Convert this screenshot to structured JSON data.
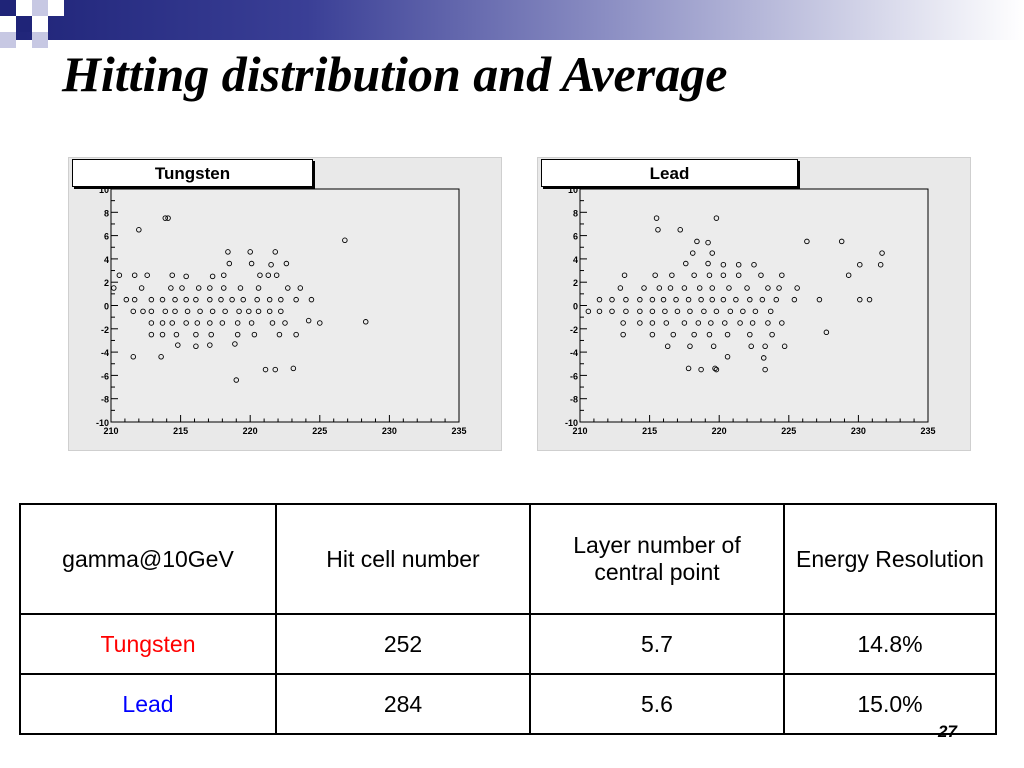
{
  "slide": {
    "title": "Hitting distribution and Average",
    "page_number": "27"
  },
  "colors": {
    "title_bar_dark": "#1f2478",
    "tungsten_label": "#ff0000",
    "lead_label": "#0000ff"
  },
  "chart_data": [
    {
      "type": "scatter",
      "title": "Tungsten",
      "xlabel": "",
      "ylabel": "",
      "xlim": [
        210,
        235
      ],
      "ylim": [
        -10,
        10
      ],
      "x_ticks": [
        "210",
        "215",
        "220",
        "225",
        "230",
        "235"
      ],
      "y_ticks": [
        "10",
        "8",
        "6",
        "4",
        "2",
        "0",
        "-2",
        "-4",
        "-6",
        "-8",
        "-10"
      ],
      "grid": false,
      "marker": "open-circle",
      "points": [
        [
          212,
          6.5
        ],
        [
          213.9,
          7.5
        ],
        [
          214.1,
          7.5
        ],
        [
          226.8,
          5.6
        ],
        [
          218.4,
          4.6
        ],
        [
          220,
          4.6
        ],
        [
          221.8,
          4.6
        ],
        [
          228.3,
          -1.4
        ],
        [
          218.5,
          3.6
        ],
        [
          220.1,
          3.6
        ],
        [
          221.5,
          3.5
        ],
        [
          222.6,
          3.6
        ],
        [
          210.6,
          2.6
        ],
        [
          211.7,
          2.6
        ],
        [
          212.6,
          2.6
        ],
        [
          214.4,
          2.6
        ],
        [
          215.4,
          2.5
        ],
        [
          217.3,
          2.5
        ],
        [
          218.1,
          2.6
        ],
        [
          220.7,
          2.6
        ],
        [
          221.3,
          2.6
        ],
        [
          221.9,
          2.6
        ],
        [
          210.2,
          1.5
        ],
        [
          212.2,
          1.5
        ],
        [
          214.3,
          1.5
        ],
        [
          215.1,
          1.5
        ],
        [
          216.3,
          1.5
        ],
        [
          217.1,
          1.5
        ],
        [
          218.1,
          1.5
        ],
        [
          219.3,
          1.5
        ],
        [
          220.6,
          1.5
        ],
        [
          222.7,
          1.5
        ],
        [
          223.6,
          1.5
        ],
        [
          211.1,
          0.5
        ],
        [
          211.7,
          0.5
        ],
        [
          212.9,
          0.5
        ],
        [
          213.7,
          0.5
        ],
        [
          214.6,
          0.5
        ],
        [
          215.4,
          0.5
        ],
        [
          216.1,
          0.5
        ],
        [
          217.1,
          0.5
        ],
        [
          217.9,
          0.5
        ],
        [
          218.7,
          0.5
        ],
        [
          219.5,
          0.5
        ],
        [
          220.5,
          0.5
        ],
        [
          221.4,
          0.5
        ],
        [
          222.2,
          0.5
        ],
        [
          223.3,
          0.5
        ],
        [
          224.4,
          0.5
        ],
        [
          211.6,
          -0.5
        ],
        [
          212.3,
          -0.5
        ],
        [
          212.9,
          -0.5
        ],
        [
          213.9,
          -0.5
        ],
        [
          214.6,
          -0.5
        ],
        [
          215.5,
          -0.5
        ],
        [
          216.4,
          -0.5
        ],
        [
          217.3,
          -0.5
        ],
        [
          218.2,
          -0.5
        ],
        [
          219.2,
          -0.5
        ],
        [
          219.9,
          -0.5
        ],
        [
          220.6,
          -0.5
        ],
        [
          221.4,
          -0.5
        ],
        [
          222.2,
          -0.5
        ],
        [
          212.9,
          -1.5
        ],
        [
          213.7,
          -1.5
        ],
        [
          214.4,
          -1.5
        ],
        [
          215.4,
          -1.5
        ],
        [
          216.2,
          -1.5
        ],
        [
          217.1,
          -1.5
        ],
        [
          218,
          -1.5
        ],
        [
          219.1,
          -1.5
        ],
        [
          220.1,
          -1.5
        ],
        [
          221.6,
          -1.5
        ],
        [
          222.5,
          -1.5
        ],
        [
          224.2,
          -1.3
        ],
        [
          225,
          -1.5
        ],
        [
          212.9,
          -2.5
        ],
        [
          213.7,
          -2.5
        ],
        [
          214.7,
          -2.5
        ],
        [
          216.1,
          -2.5
        ],
        [
          217.2,
          -2.5
        ],
        [
          219.1,
          -2.5
        ],
        [
          220.3,
          -2.5
        ],
        [
          222.1,
          -2.5
        ],
        [
          223.3,
          -2.5
        ],
        [
          211.6,
          -4.4
        ],
        [
          213.6,
          -4.4
        ],
        [
          214.8,
          -3.4
        ],
        [
          216.1,
          -3.5
        ],
        [
          217.1,
          -3.4
        ],
        [
          218.9,
          -3.3
        ],
        [
          221.1,
          -5.5
        ],
        [
          221.8,
          -5.5
        ],
        [
          223.1,
          -5.4
        ],
        [
          219,
          -6.4
        ]
      ]
    },
    {
      "type": "scatter",
      "title": "Lead",
      "xlabel": "",
      "ylabel": "",
      "xlim": [
        210,
        235
      ],
      "ylim": [
        -10,
        10
      ],
      "x_ticks": [
        "210",
        "215",
        "220",
        "225",
        "230",
        "235"
      ],
      "y_ticks": [
        "10",
        "8",
        "6",
        "4",
        "2",
        "0",
        "-2",
        "-4",
        "-6",
        "-8",
        "-10"
      ],
      "grid": false,
      "marker": "open-circle",
      "points": [
        [
          215.5,
          7.5
        ],
        [
          215.6,
          6.5
        ],
        [
          217.2,
          6.5
        ],
        [
          219.8,
          7.5
        ],
        [
          226.3,
          5.5
        ],
        [
          228.8,
          5.5
        ],
        [
          218.4,
          5.5
        ],
        [
          219.2,
          5.4
        ],
        [
          231.7,
          4.5
        ],
        [
          231.6,
          3.5
        ],
        [
          230.1,
          3.5
        ],
        [
          229.3,
          2.6
        ],
        [
          218.1,
          4.5
        ],
        [
          219.5,
          4.5
        ],
        [
          217.6,
          3.6
        ],
        [
          219.2,
          3.6
        ],
        [
          220.3,
          3.5
        ],
        [
          221.4,
          3.5
        ],
        [
          222.5,
          3.5
        ],
        [
          213.2,
          2.6
        ],
        [
          215.4,
          2.6
        ],
        [
          216.6,
          2.6
        ],
        [
          218.2,
          2.6
        ],
        [
          219.3,
          2.6
        ],
        [
          220.3,
          2.6
        ],
        [
          221.4,
          2.6
        ],
        [
          223,
          2.6
        ],
        [
          224.5,
          2.6
        ],
        [
          212.9,
          1.5
        ],
        [
          214.6,
          1.5
        ],
        [
          215.7,
          1.5
        ],
        [
          216.5,
          1.5
        ],
        [
          217.5,
          1.5
        ],
        [
          218.6,
          1.5
        ],
        [
          219.5,
          1.5
        ],
        [
          220.7,
          1.5
        ],
        [
          222,
          1.5
        ],
        [
          223.5,
          1.5
        ],
        [
          224.3,
          1.5
        ],
        [
          225.6,
          1.5
        ],
        [
          211.4,
          0.5
        ],
        [
          212.3,
          0.5
        ],
        [
          213.3,
          0.5
        ],
        [
          214.3,
          0.5
        ],
        [
          215.2,
          0.5
        ],
        [
          216,
          0.5
        ],
        [
          216.9,
          0.5
        ],
        [
          217.8,
          0.5
        ],
        [
          218.7,
          0.5
        ],
        [
          219.5,
          0.5
        ],
        [
          220.3,
          0.5
        ],
        [
          221.2,
          0.5
        ],
        [
          222.2,
          0.5
        ],
        [
          223.1,
          0.5
        ],
        [
          224.1,
          0.5
        ],
        [
          225.4,
          0.5
        ],
        [
          227.2,
          0.5
        ],
        [
          230.1,
          0.5
        ],
        [
          230.8,
          0.5
        ],
        [
          210.6,
          -0.5
        ],
        [
          211.4,
          -0.5
        ],
        [
          212.3,
          -0.5
        ],
        [
          213.3,
          -0.5
        ],
        [
          214.3,
          -0.5
        ],
        [
          215.2,
          -0.5
        ],
        [
          216.1,
          -0.5
        ],
        [
          217,
          -0.5
        ],
        [
          217.9,
          -0.5
        ],
        [
          218.9,
          -0.5
        ],
        [
          219.8,
          -0.5
        ],
        [
          220.8,
          -0.5
        ],
        [
          221.7,
          -0.5
        ],
        [
          222.6,
          -0.5
        ],
        [
          223.7,
          -0.5
        ],
        [
          213.1,
          -1.5
        ],
        [
          214.3,
          -1.5
        ],
        [
          215.2,
          -1.5
        ],
        [
          216.2,
          -1.5
        ],
        [
          217.5,
          -1.5
        ],
        [
          218.5,
          -1.5
        ],
        [
          219.4,
          -1.5
        ],
        [
          220.4,
          -1.5
        ],
        [
          221.5,
          -1.5
        ],
        [
          222.4,
          -1.5
        ],
        [
          223.5,
          -1.5
        ],
        [
          224.5,
          -1.5
        ],
        [
          213.1,
          -2.5
        ],
        [
          215.2,
          -2.5
        ],
        [
          216.7,
          -2.5
        ],
        [
          218.2,
          -2.5
        ],
        [
          219.3,
          -2.5
        ],
        [
          220.6,
          -2.5
        ],
        [
          222.2,
          -2.5
        ],
        [
          223.8,
          -2.5
        ],
        [
          227.7,
          -2.3
        ],
        [
          216.3,
          -3.5
        ],
        [
          217.9,
          -3.5
        ],
        [
          219.6,
          -3.5
        ],
        [
          222.3,
          -3.5
        ],
        [
          224.7,
          -3.5
        ],
        [
          223.3,
          -3.5
        ],
        [
          220.6,
          -4.4
        ],
        [
          223.2,
          -4.5
        ],
        [
          217.8,
          -5.4
        ],
        [
          218.7,
          -5.5
        ],
        [
          219.7,
          -5.4
        ],
        [
          219.8,
          -5.5
        ],
        [
          223.3,
          -5.5
        ]
      ]
    }
  ],
  "table": {
    "headers": [
      "gamma@10GeV",
      "Hit cell number",
      "Layer number of central point",
      "Energy Resolution"
    ],
    "rows": [
      {
        "label": "Tungsten",
        "hit_cells": "252",
        "layer": "5.7",
        "resolution": "14.8%"
      },
      {
        "label": "Lead",
        "hit_cells": "284",
        "layer": "5.6",
        "resolution": "15.0%"
      }
    ]
  }
}
